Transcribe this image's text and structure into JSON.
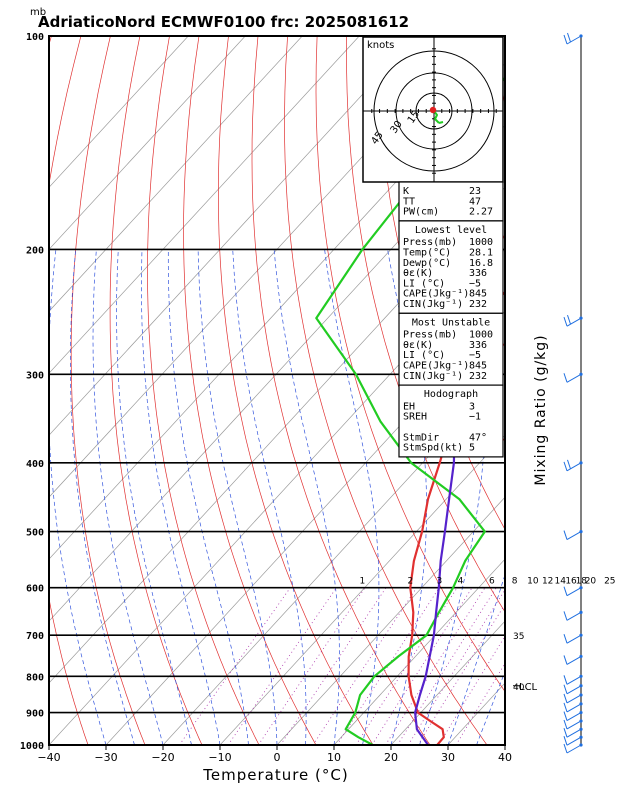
{
  "chart_data": {
    "type": "line",
    "title": "AdriaticoNord ECMWF0100 frc: 2025081612",
    "y_unit": "mb",
    "xlabel": "Temperature (°C)",
    "right_label": "Mixing Ratio (g/kg)",
    "xlim": [
      -40,
      40
    ],
    "ylim": [
      1000,
      100
    ],
    "log_pressure": true,
    "x_ticks": [
      "−40",
      "−30",
      "−20",
      "−10",
      "0",
      "10",
      "20",
      "30",
      "40"
    ],
    "pressure_levels": [
      {
        "p": 100,
        "label": "100"
      },
      {
        "p": 200,
        "label": "200"
      },
      {
        "p": 300,
        "label": "300"
      },
      {
        "p": 400,
        "label": "400"
      },
      {
        "p": 500,
        "label": "500"
      },
      {
        "p": 600,
        "label": "600"
      },
      {
        "p": 700,
        "label": "700"
      },
      {
        "p": 800,
        "label": "800"
      },
      {
        "p": 900,
        "label": "900"
      },
      {
        "p": 1000,
        "label": "1000"
      }
    ],
    "series": [
      {
        "key": "temperature",
        "color": "#e03030",
        "p": [
          1000,
          975,
          950,
          925,
          900,
          850,
          800,
          750,
          700,
          650,
          600,
          550,
          500,
          450,
          400,
          350,
          300,
          250,
          225,
          200,
          150,
          100
        ],
        "t": [
          28.1,
          28,
          26.5,
          23,
          19.5,
          15.5,
          12,
          8.8,
          6,
          2.5,
          -2,
          -5.7,
          -9,
          -13.2,
          -17,
          -21.5,
          -26,
          -33.5,
          -33,
          -28,
          -16,
          -5
        ]
      },
      {
        "key": "dewpoint",
        "color": "#22cc22",
        "p": [
          1000,
          975,
          950,
          925,
          900,
          850,
          800,
          750,
          700,
          650,
          600,
          550,
          500,
          450,
          400,
          350,
          300,
          250,
          200,
          150,
          100
        ],
        "t": [
          16.8,
          13,
          9.5,
          9,
          8.5,
          6.5,
          6,
          7,
          8.5,
          7,
          5.5,
          3.3,
          2,
          -7.7,
          -22,
          -34,
          -46,
          -62,
          -65,
          -67,
          -68
        ]
      },
      {
        "key": "parcel",
        "color": "#5522cc",
        "p": [
          1000,
          950,
          900,
          850,
          800,
          750,
          700,
          650,
          600,
          550,
          500,
          450,
          400,
          350,
          300,
          250,
          200,
          150,
          115
        ],
        "t": [
          26.5,
          22,
          19,
          17,
          15,
          12.5,
          9.8,
          6.5,
          3,
          -1,
          -5,
          -9.5,
          -14.5,
          -21,
          -28,
          -37,
          -48,
          -61,
          -71
        ]
      }
    ],
    "mixing_ratio_labels": [
      {
        "value": "1",
        "t": -10.4
      },
      {
        "value": "2",
        "t": -2
      },
      {
        "value": "3",
        "t": 3.1
      },
      {
        "value": "4",
        "t": 6.8
      },
      {
        "value": "6",
        "t": 12.3
      },
      {
        "value": "8",
        "t": 16.3
      },
      {
        "value": "10",
        "t": 19.5
      },
      {
        "value": "12",
        "t": 22.1
      },
      {
        "value": "14",
        "t": 24.3
      },
      {
        "value": "16",
        "t": 26.2
      },
      {
        "value": "18",
        "t": 28
      },
      {
        "value": "20",
        "t": 29.6
      },
      {
        "value": "25",
        "t": 33
      },
      {
        "value": "30",
        "t": 35.8
      }
    ],
    "adiabat_labels": [
      {
        "value": "35",
        "p": 700
      },
      {
        "value": "40",
        "p": 825
      }
    ],
    "lcl": {
      "label": "LCL",
      "p": 825
    },
    "hodograph": {
      "units": "knots",
      "ring_labels": [
        "15",
        "30",
        "45"
      ],
      "storm_dir": 47,
      "storm_speed": 5
    },
    "wind_barbs": [
      {
        "p": 1000,
        "speed": 2
      },
      {
        "p": 975,
        "speed": 5
      },
      {
        "p": 950,
        "speed": 6
      },
      {
        "p": 925,
        "speed": 7
      },
      {
        "p": 900,
        "speed": 5
      },
      {
        "p": 875,
        "speed": 5
      },
      {
        "p": 850,
        "speed": 5
      },
      {
        "p": 825,
        "speed": 6
      },
      {
        "p": 800,
        "speed": 5
      },
      {
        "p": 750,
        "speed": 6
      },
      {
        "p": 700,
        "speed": 4
      },
      {
        "p": 650,
        "speed": 5
      },
      {
        "p": 600,
        "speed": 6
      },
      {
        "p": 500,
        "speed": 7
      },
      {
        "p": 400,
        "speed": 8
      },
      {
        "p": 300,
        "speed": 6
      },
      {
        "p": 250,
        "speed": 10
      },
      {
        "p": 100,
        "speed": 12
      }
    ]
  },
  "indices": {
    "top": [
      {
        "label": "K",
        "value": "23"
      },
      {
        "label": "TT",
        "value": "47"
      },
      {
        "label": "PW(cm)",
        "value": "2.27"
      }
    ],
    "sections": [
      {
        "title": "Lowest level",
        "rows": [
          {
            "label": "Press(mb)",
            "value": "1000"
          },
          {
            "label": "Temp(°C)",
            "value": "28.1"
          },
          {
            "label": "Dewp(°C)",
            "value": "16.8"
          },
          {
            "label": "θε(K)",
            "value": "336"
          },
          {
            "label": "LI (°C)",
            "value": "−5"
          },
          {
            "label": "CAPE(Jkg⁻¹)",
            "value": "845"
          },
          {
            "label": "CIN(Jkg⁻¹)",
            "value": "232"
          }
        ]
      },
      {
        "title": "Most Unstable",
        "rows": [
          {
            "label": "Press(mb)",
            "value": "1000"
          },
          {
            "label": "θε(K)",
            "value": "336"
          },
          {
            "label": "LI (°C)",
            "value": "−5"
          },
          {
            "label": "CAPE(Jkg⁻¹)",
            "value": "845"
          },
          {
            "label": "CIN(Jkg⁻¹)",
            "value": "232"
          }
        ]
      },
      {
        "title": "Hodograph",
        "rows": [
          {
            "label": "EH",
            "value": "3"
          },
          {
            "label": "SREH",
            "value": "−1"
          },
          {
            "label": "",
            "value": ""
          },
          {
            "label": "StmDir",
            "value": "47°"
          },
          {
            "label": "StmSpd(kt)",
            "value": "5"
          }
        ]
      }
    ]
  }
}
